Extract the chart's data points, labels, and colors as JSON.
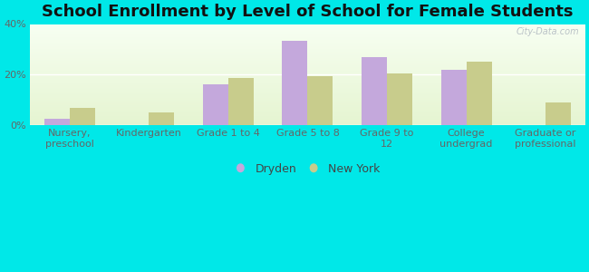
{
  "title": "School Enrollment by Level of School for Female Students",
  "categories": [
    "Nursery,\npreschool",
    "Kindergarten",
    "Grade 1 to 4",
    "Grade 5 to 8",
    "Grade 9 to\n12",
    "College\nundergrad",
    "Graduate or\nprofessional"
  ],
  "dryden": [
    2.5,
    0,
    16.0,
    33.5,
    27.0,
    22.0,
    0
  ],
  "new_york": [
    7.0,
    5.0,
    18.5,
    19.5,
    20.5,
    25.0,
    9.0
  ],
  "dryden_color": "#c4a8dc",
  "new_york_color": "#c8cc8c",
  "background_color": "#00e8e8",
  "ylim": [
    0,
    40
  ],
  "yticks": [
    0,
    20,
    40
  ],
  "yticklabels": [
    "0%",
    "20%",
    "40%"
  ],
  "bar_width": 0.32,
  "title_fontsize": 13,
  "tick_fontsize": 8,
  "legend_fontsize": 9,
  "watermark": "City-Data.com"
}
